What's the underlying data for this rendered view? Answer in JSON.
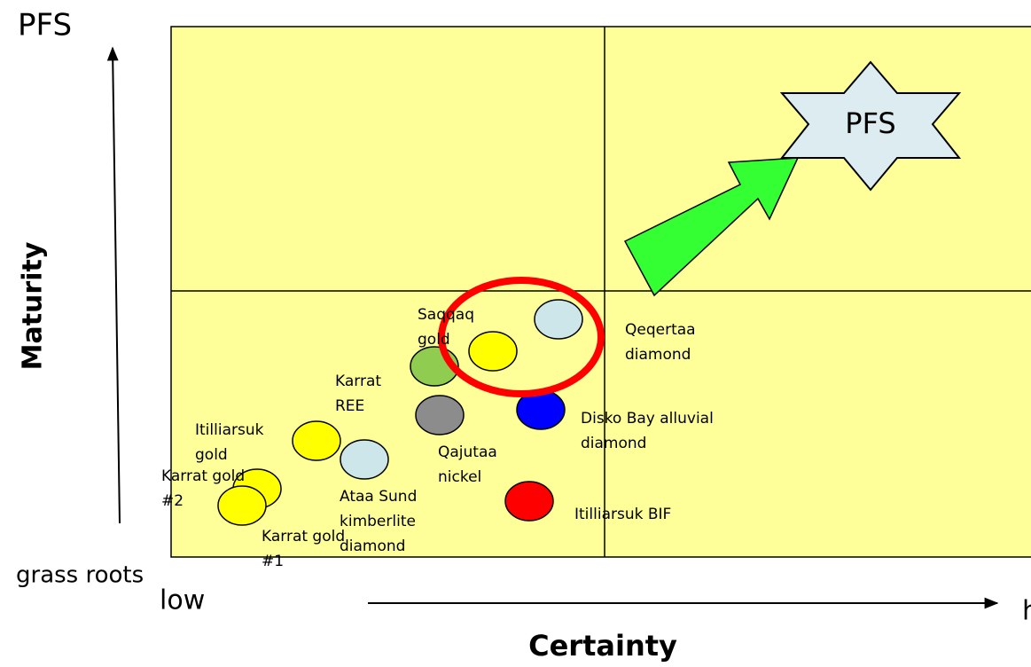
{
  "title_top": "PFS",
  "y_axis_label": "Maturity",
  "y_axis_low": "grass roots",
  "x_axis_low": "low",
  "x_axis_high": "h",
  "x_axis_label": "Certainty",
  "target_label": "PFS",
  "nodes": [
    {
      "label": [
        "Karrat gold",
        "#2"
      ],
      "color": "#ffff00"
    },
    {
      "label": [
        "Karrat gold",
        "#1"
      ],
      "color": "#ffff00"
    },
    {
      "label": [
        "Itilliarsuk",
        "gold"
      ],
      "color": "#ffff00"
    },
    {
      "label": [
        "Ataa Sund",
        "kimberlite",
        "diamond"
      ],
      "color": "#cde6ea"
    },
    {
      "label": [
        "Karrat",
        "REE"
      ],
      "color": "#8fcc50"
    },
    {
      "label": [
        "Qajutaa",
        "nickel"
      ],
      "color": "#8c8c8c"
    },
    {
      "label": [
        "Saqqaq",
        "gold"
      ],
      "color": "#ffff00"
    },
    {
      "label": [
        "Qeqertaa",
        "diamond"
      ],
      "color": "#cde6ea"
    },
    {
      "label": [
        "Disko Bay alluvial",
        "diamond"
      ],
      "color": "#0000ff"
    },
    {
      "label": [
        "Itilliarsuk BIF"
      ],
      "color": "#ff0000"
    }
  ]
}
